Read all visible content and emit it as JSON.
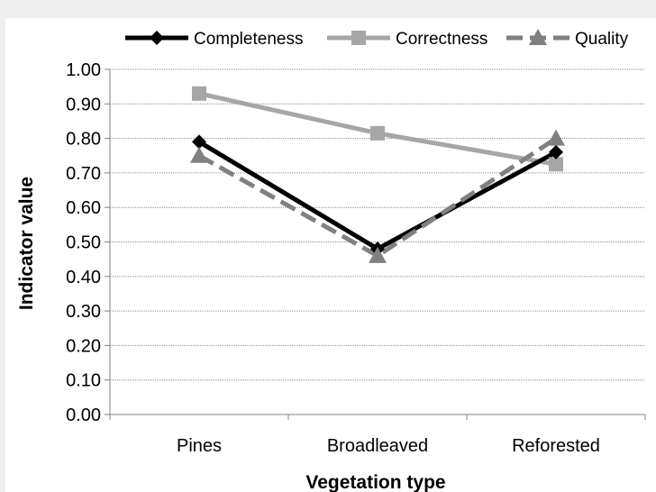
{
  "chart_data": {
    "type": "line",
    "categories": [
      "Pines",
      "Broadleaved",
      "Reforested"
    ],
    "series": [
      {
        "name": "Completeness",
        "values": [
          0.79,
          0.48,
          0.76
        ],
        "color": "#000000",
        "marker": "diamond",
        "dash": "solid"
      },
      {
        "name": "Correctness",
        "values": [
          0.93,
          0.815,
          0.725
        ],
        "color": "#a6a6a6",
        "marker": "square",
        "dash": "solid"
      },
      {
        "name": "Quality",
        "values": [
          0.75,
          0.46,
          0.8
        ],
        "color": "#808080",
        "marker": "triangle",
        "dash": "dashed"
      }
    ],
    "xlabel": "Vegetation type",
    "ylabel": "Indicator value",
    "ylim": [
      0,
      1
    ],
    "yticks": [
      "0.00",
      "0.10",
      "0.20",
      "0.30",
      "0.40",
      "0.50",
      "0.60",
      "0.70",
      "0.80",
      "0.90",
      "1.00"
    ],
    "grid": true,
    "legend_position": "top"
  }
}
